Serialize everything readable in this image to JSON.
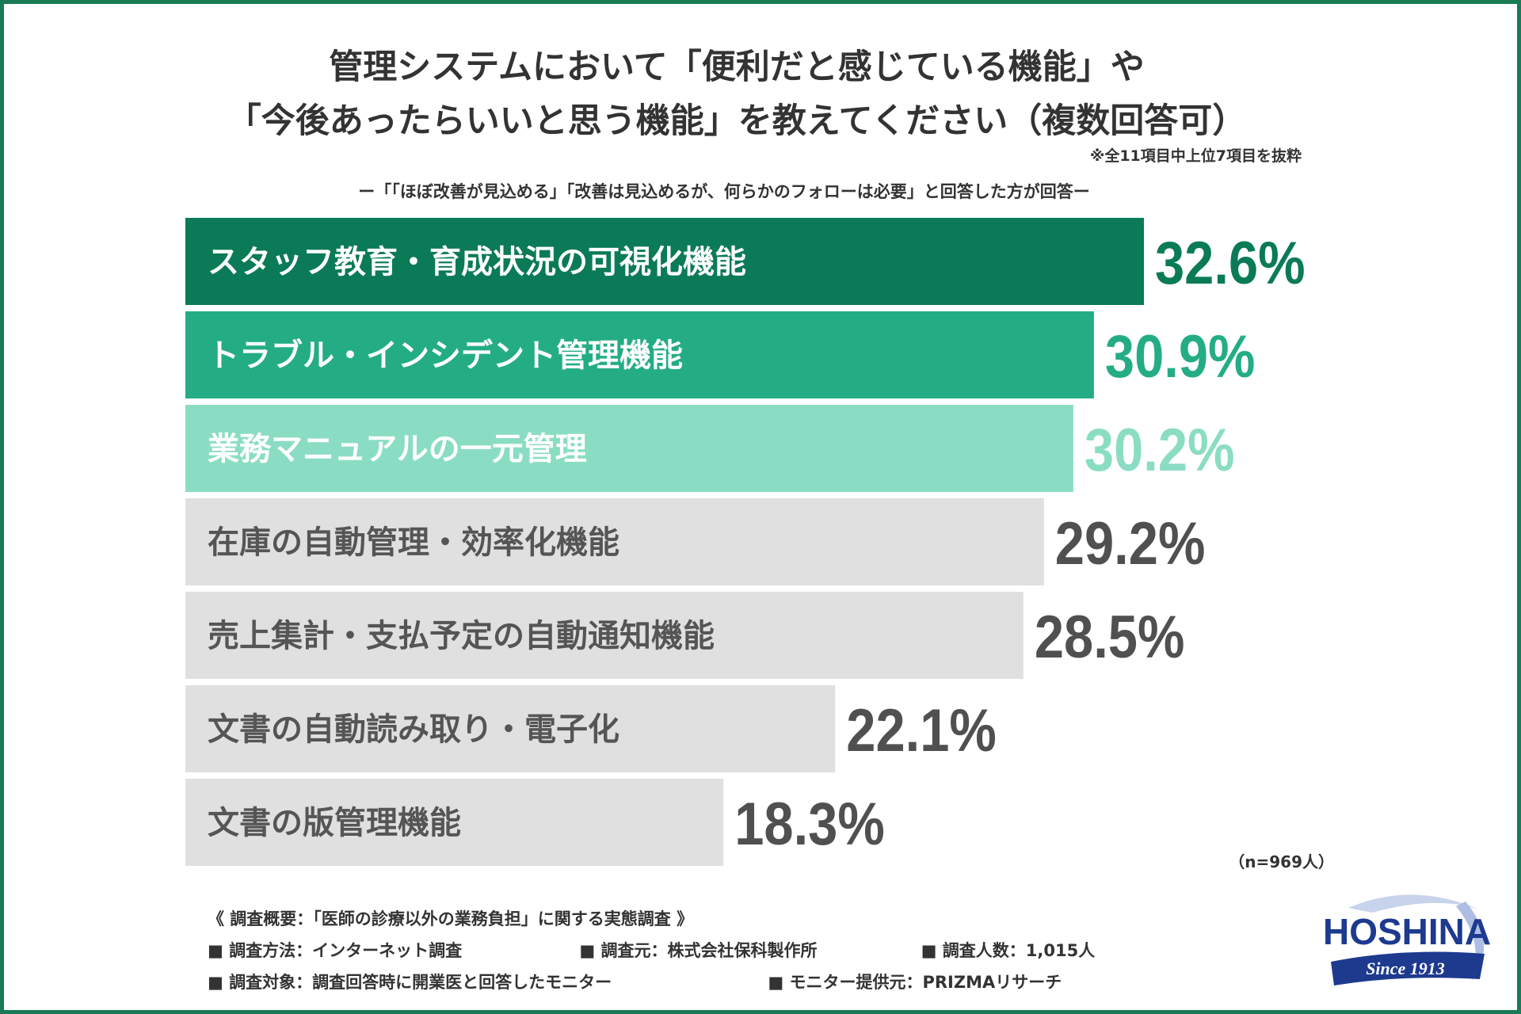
{
  "title": {
    "line1": "管理システムにおいて「便利だと感じている機能」や",
    "line2": "「今後あったらいいと思う機能」を教えてください（複数回答可）"
  },
  "note": "※全11項目中上位7項目を抜粋",
  "subtitle": "ー「「ほぼ改善が見込める」「改善は見込めるが、何らかのフォローは必要」と回答した方が回答ー",
  "sample_size": "（n=969人）",
  "colors": {
    "frame": "#1a7a56",
    "rank1": "#0b7a57",
    "rank2": "#24ad84",
    "rank3": "#8addc3",
    "other": "#e0e0e0",
    "other_text": "#555555",
    "other_value": "#505050"
  },
  "chart_data": {
    "type": "bar",
    "orientation": "horizontal",
    "unit": "%",
    "xlim": [
      0,
      40
    ],
    "categories": [
      "スタッフ教育・育成状況の可視化機能",
      "トラブル・インシデント管理機能",
      "業務マニュアルの一元管理",
      "在庫の自動管理・効率化機能",
      "売上集計・支払予定の自動通知機能",
      "文書の自動読み取り・電子化",
      "文書の版管理機能"
    ],
    "values": [
      32.6,
      30.9,
      30.2,
      29.2,
      28.5,
      22.1,
      18.3
    ],
    "value_labels": [
      "32.6%",
      "30.9%",
      "30.2%",
      "29.2%",
      "28.5%",
      "22.1%",
      "18.3%"
    ]
  },
  "footer": {
    "survey_title": "《 調査概要：「医師の診療以外の業務負担」に関する実態調査 》",
    "method": "■ 調査方法：インターネット調査",
    "source": "■ 調査元：株式会社保科製作所",
    "count": "■ 調査人数：1,015人",
    "target": "■ 調査対象：調査回答時に開業医と回答したモニター",
    "provider": "■ モニター提供元：PRIZMAリサーチ"
  },
  "logo": {
    "name": "HOSHINA",
    "tagline": "Since 1913"
  }
}
